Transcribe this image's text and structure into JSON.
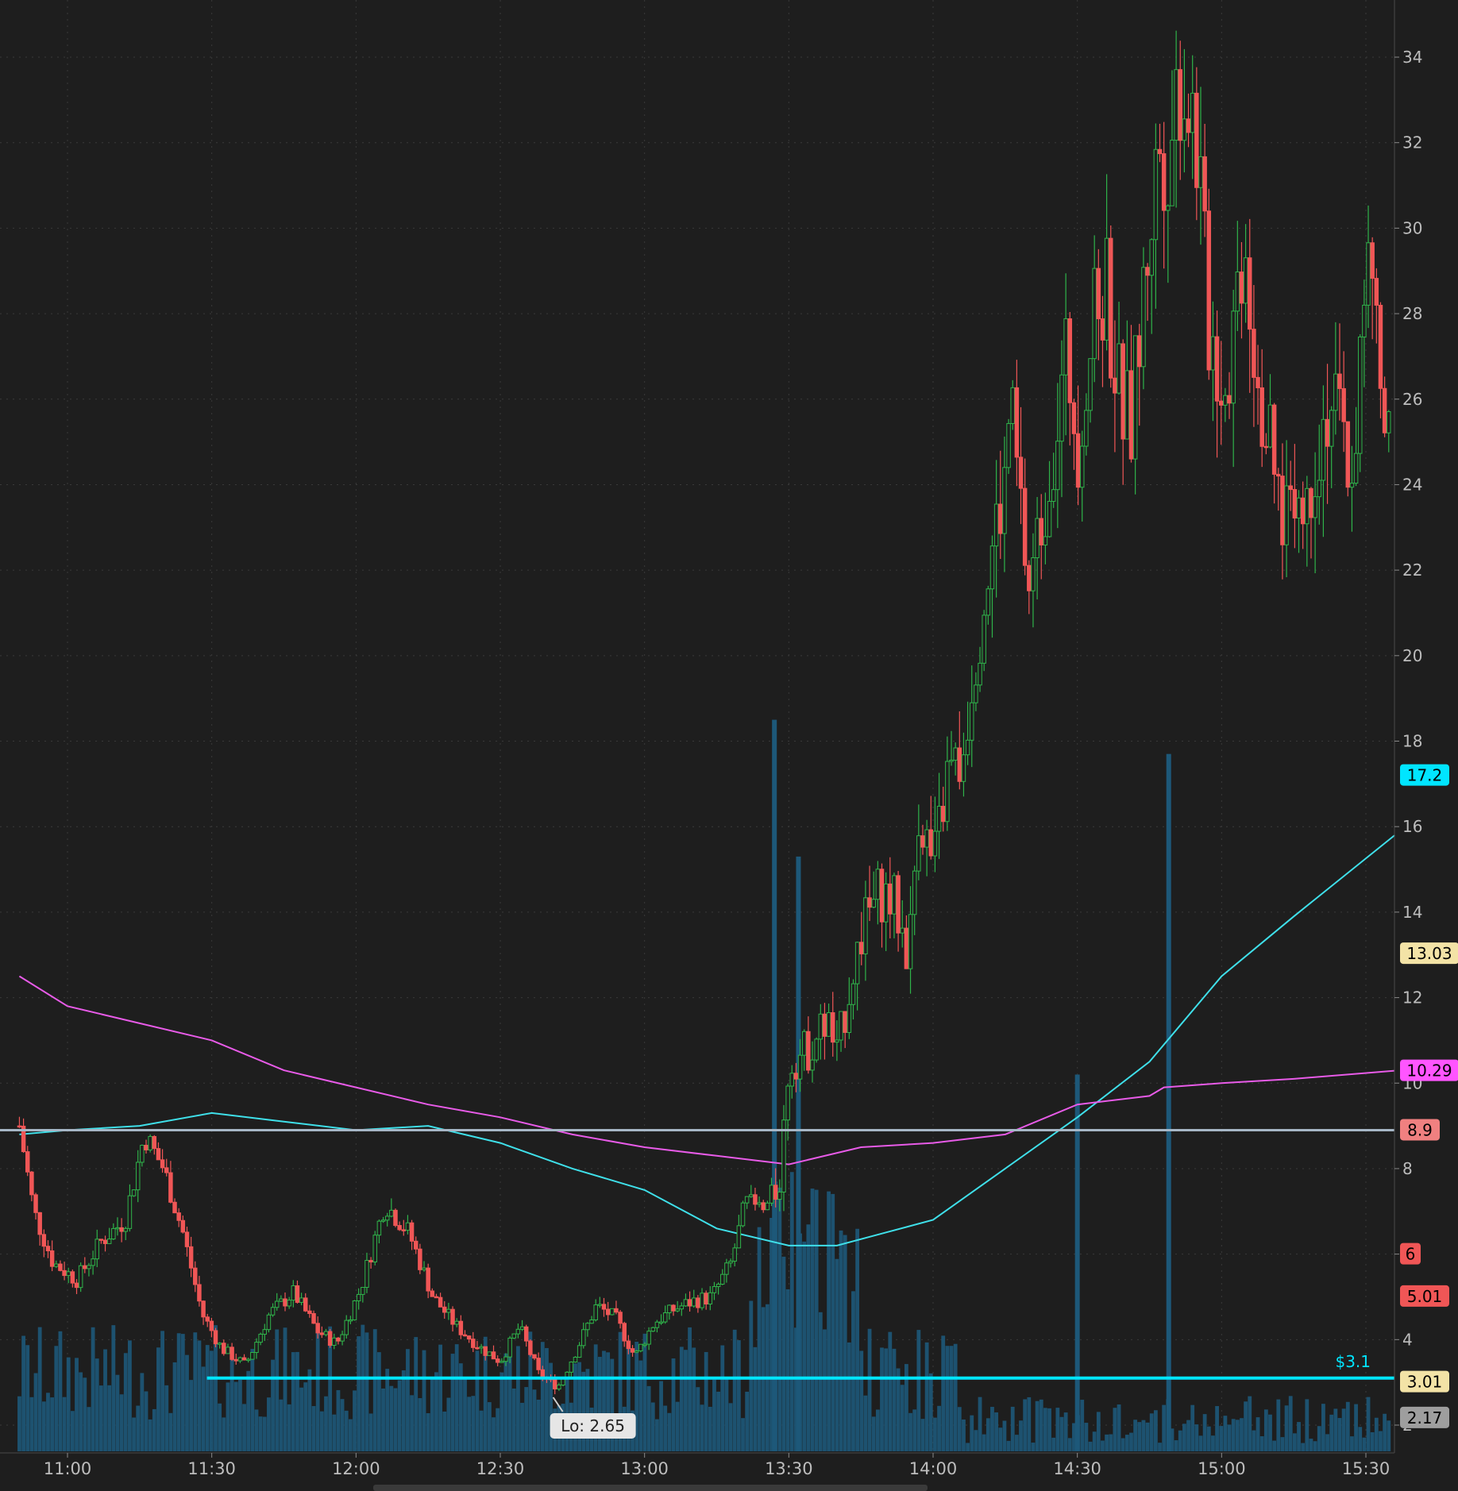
{
  "chart_data": {
    "type": "candlestick",
    "x_axis": {
      "ticks": [
        "11:00",
        "11:30",
        "12:00",
        "12:30",
        "13:00",
        "13:30",
        "14:00",
        "14:30",
        "15:00",
        "15:30"
      ],
      "start_time": "10:50",
      "end_time": "15:36"
    },
    "y_axis": {
      "ticks": [
        "2",
        "4",
        "6",
        "8",
        "10",
        "12",
        "14",
        "16",
        "18",
        "20",
        "22",
        "24",
        "26",
        "28",
        "30",
        "32",
        "34"
      ],
      "range": [
        2,
        35
      ]
    },
    "price_tags": [
      {
        "text": "17.2",
        "value": 17.2,
        "bg": "#00e5ff",
        "fg": "#000000"
      },
      {
        "text": "13.03",
        "value": 13.03,
        "bg": "#f3e3a6",
        "fg": "#000000"
      },
      {
        "text": "10.29",
        "value": 10.29,
        "bg": "#ff55ff",
        "fg": "#000000"
      },
      {
        "text": "8.9",
        "value": 8.9,
        "bg": "#f08080",
        "fg": "#000000"
      },
      {
        "text": "6",
        "value": 6,
        "bg": "#f05656",
        "fg": "#000000"
      },
      {
        "text": "5.01",
        "value": 5.01,
        "bg": "#f05656",
        "fg": "#000000"
      },
      {
        "text": "3.01",
        "value": 3.01,
        "bg": "#f3e3a6",
        "fg": "#000000"
      },
      {
        "text": "2.17",
        "value": 2.17,
        "bg": "#9e9e9e",
        "fg": "#000000"
      }
    ],
    "horizontal_lines": [
      {
        "value": 8.9,
        "color": "#a6b6c6"
      },
      {
        "value": 3.1,
        "color": "#00e5ff",
        "label": "$3.1",
        "start_time": "11:29"
      }
    ],
    "annotation": {
      "text": "Lo: 2.65",
      "value": 2.65,
      "time": "12:41"
    },
    "candles_anchor": [
      [
        "10:50",
        9.0
      ],
      [
        "10:53",
        7.0
      ],
      [
        "10:57",
        5.8
      ],
      [
        "11:02",
        5.4
      ],
      [
        "11:07",
        6.3
      ],
      [
        "11:12",
        6.8
      ],
      [
        "11:16",
        8.8
      ],
      [
        "11:20",
        8.0
      ],
      [
        "11:24",
        6.5
      ],
      [
        "11:28",
        4.6
      ],
      [
        "11:32",
        3.8
      ],
      [
        "11:37",
        3.4
      ],
      [
        "11:42",
        4.6
      ],
      [
        "11:47",
        5.1
      ],
      [
        "11:52",
        4.2
      ],
      [
        "11:56",
        3.9
      ],
      [
        "12:01",
        5.2
      ],
      [
        "12:06",
        7.2
      ],
      [
        "12:11",
        6.5
      ],
      [
        "12:16",
        5.0
      ],
      [
        "12:21",
        4.3
      ],
      [
        "12:26",
        3.8
      ],
      [
        "12:30",
        3.5
      ],
      [
        "12:34",
        4.3
      ],
      [
        "12:38",
        3.2
      ],
      [
        "12:42",
        2.9
      ],
      [
        "12:46",
        3.8
      ],
      [
        "12:50",
        4.8
      ],
      [
        "12:54",
        4.5
      ],
      [
        "12:58",
        3.6
      ],
      [
        "13:02",
        4.4
      ],
      [
        "13:06",
        4.7
      ],
      [
        "13:10",
        4.9
      ],
      [
        "13:14",
        5.0
      ],
      [
        "13:18",
        5.8
      ],
      [
        "13:21",
        7.2
      ],
      [
        "13:25",
        7.0
      ],
      [
        "13:28",
        7.6
      ],
      [
        "13:30",
        10.5
      ],
      [
        "13:34",
        10.8
      ],
      [
        "13:38",
        11.5
      ],
      [
        "13:40",
        10.6
      ],
      [
        "13:43",
        12.5
      ],
      [
        "13:46",
        13.8
      ],
      [
        "13:49",
        14.5
      ],
      [
        "13:52",
        14.2
      ],
      [
        "13:55",
        13.0
      ],
      [
        "13:57",
        16.5
      ],
      [
        "14:00",
        15.0
      ],
      [
        "14:03",
        17.2
      ],
      [
        "14:06",
        17.5
      ],
      [
        "14:08",
        19.5
      ],
      [
        "14:10",
        21.0
      ],
      [
        "14:13",
        23.0
      ],
      [
        "14:15",
        24.0
      ],
      [
        "14:16",
        26.0
      ],
      [
        "14:18",
        23.5
      ],
      [
        "14:20",
        21.5
      ],
      [
        "14:23",
        23.5
      ],
      [
        "14:25",
        25.0
      ],
      [
        "14:28",
        27.0
      ],
      [
        "14:30",
        25.0
      ],
      [
        "14:33",
        27.5
      ],
      [
        "14:36",
        28.8
      ],
      [
        "14:38",
        26.5
      ],
      [
        "14:41",
        25.2
      ],
      [
        "14:43",
        27.5
      ],
      [
        "14:45",
        30.0
      ],
      [
        "14:47",
        32.0
      ],
      [
        "14:49",
        31.8
      ],
      [
        "14:51",
        33.6
      ],
      [
        "14:53",
        33.2
      ],
      [
        "14:55",
        32.0
      ],
      [
        "14:57",
        28.0
      ],
      [
        "14:59",
        27.0
      ],
      [
        "15:01",
        26.2
      ],
      [
        "15:03",
        28.5
      ],
      [
        "15:05",
        30.0
      ],
      [
        "15:07",
        27.0
      ],
      [
        "15:09",
        25.5
      ],
      [
        "15:11",
        24.0
      ],
      [
        "15:13",
        23.2
      ],
      [
        "15:15",
        24.5
      ],
      [
        "15:17",
        23.0
      ],
      [
        "15:19",
        24.6
      ],
      [
        "15:21",
        25.5
      ],
      [
        "15:23",
        26.0
      ],
      [
        "15:25",
        25.0
      ],
      [
        "15:27",
        24.2
      ],
      [
        "15:29",
        27.0
      ],
      [
        "15:31",
        29.5
      ],
      [
        "15:33",
        26.0
      ],
      [
        "15:35",
        24.5
      ]
    ],
    "volume_spikes": [
      [
        "13:27",
        18.5
      ],
      [
        "13:32",
        15.3
      ],
      [
        "14:49",
        17.7
      ],
      [
        "14:30",
        10.2
      ]
    ],
    "sma_cyan": [
      [
        "10:50",
        8.8
      ],
      [
        "11:00",
        8.9
      ],
      [
        "11:15",
        9.0
      ],
      [
        "11:30",
        9.3
      ],
      [
        "11:45",
        9.1
      ],
      [
        "12:00",
        8.9
      ],
      [
        "12:15",
        9.0
      ],
      [
        "12:30",
        8.6
      ],
      [
        "12:45",
        8.0
      ],
      [
        "13:00",
        7.5
      ],
      [
        "13:15",
        6.6
      ],
      [
        "13:30",
        6.2
      ],
      [
        "13:40",
        6.2
      ],
      [
        "13:50",
        6.5
      ],
      [
        "14:00",
        6.8
      ],
      [
        "14:15",
        8.0
      ],
      [
        "14:30",
        9.2
      ],
      [
        "14:45",
        10.5
      ],
      [
        "15:00",
        12.5
      ],
      [
        "15:15",
        13.9
      ],
      [
        "15:36",
        15.8
      ]
    ],
    "sma_magenta": [
      [
        "10:50",
        12.5
      ],
      [
        "11:00",
        11.8
      ],
      [
        "11:15",
        11.4
      ],
      [
        "11:30",
        11.0
      ],
      [
        "11:45",
        10.3
      ],
      [
        "12:00",
        9.9
      ],
      [
        "12:15",
        9.5
      ],
      [
        "12:30",
        9.2
      ],
      [
        "12:45",
        8.8
      ],
      [
        "13:00",
        8.5
      ],
      [
        "13:15",
        8.3
      ],
      [
        "13:30",
        8.1
      ],
      [
        "13:45",
        8.5
      ],
      [
        "14:00",
        8.6
      ],
      [
        "14:15",
        8.8
      ],
      [
        "14:30",
        9.5
      ],
      [
        "14:45",
        9.7
      ],
      [
        "14:48",
        9.9
      ],
      [
        "15:00",
        10.0
      ],
      [
        "15:15",
        10.1
      ],
      [
        "15:36",
        10.29
      ]
    ]
  }
}
